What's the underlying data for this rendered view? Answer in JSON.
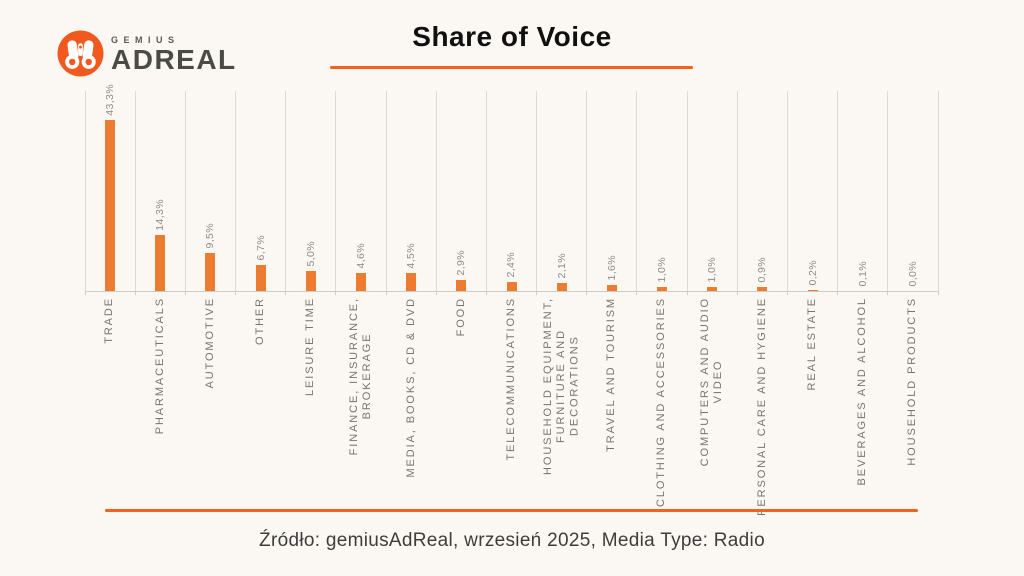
{
  "brand": {
    "gemius": "GEMIUS",
    "adreal": "ADREAL"
  },
  "header": {
    "title": "Share of Voice"
  },
  "footer": {
    "source": "Źródło: gemiusAdReal, wrzesień 2025, Media Type: Radio"
  },
  "colors": {
    "accent_orange": "#F4611D",
    "bar_orange": "#ED7C31",
    "background": "#FBF8F4",
    "gridline": "#DCD8D4"
  },
  "chart_data": {
    "type": "bar",
    "title": "Share of Voice",
    "unit": "percent share of voice",
    "categories": [
      "TRADE",
      "PHARMACEUTICALS",
      "AUTOMOTIVE",
      "OTHER",
      "LEISURE TIME",
      "FINANCE, INSURANCE,\nBROKERAGE",
      "MEDIA, BOOKS, CD & DVD",
      "FOOD",
      "TELECOMMUNICATIONS",
      "HOUSEHOLD EQUIPMENT,\nFURNITURE AND\nDECORATIONS",
      "TRAVEL AND TOURISM",
      "CLOTHING AND ACCESSORIES",
      "COMPUTERS AND AUDIO\nVIDEO",
      "PERSONAL CARE AND HYGIENE",
      "REAL ESTATE",
      "BEVERAGES AND ALCOHOL",
      "HOUSEHOLD PRODUCTS"
    ],
    "values": [
      43.3,
      14.3,
      9.5,
      6.7,
      5.0,
      4.6,
      4.5,
      2.9,
      2.4,
      2.1,
      1.6,
      1.0,
      1.0,
      0.9,
      0.2,
      0.1,
      0.0
    ],
    "value_labels": [
      "43,3%",
      "14,3%",
      "9,5%",
      "6,7%",
      "5,0%",
      "4,6%",
      "4,5%",
      "2,9%",
      "2,4%",
      "2,1%",
      "1,6%",
      "1,0%",
      "1,0%",
      "0,9%",
      "0,2%",
      "0,1%",
      "0,0%"
    ],
    "ylim": [
      0,
      50
    ],
    "grid": "vertical-category-separators",
    "legend": "none",
    "bar_color": "#ED7C31"
  }
}
